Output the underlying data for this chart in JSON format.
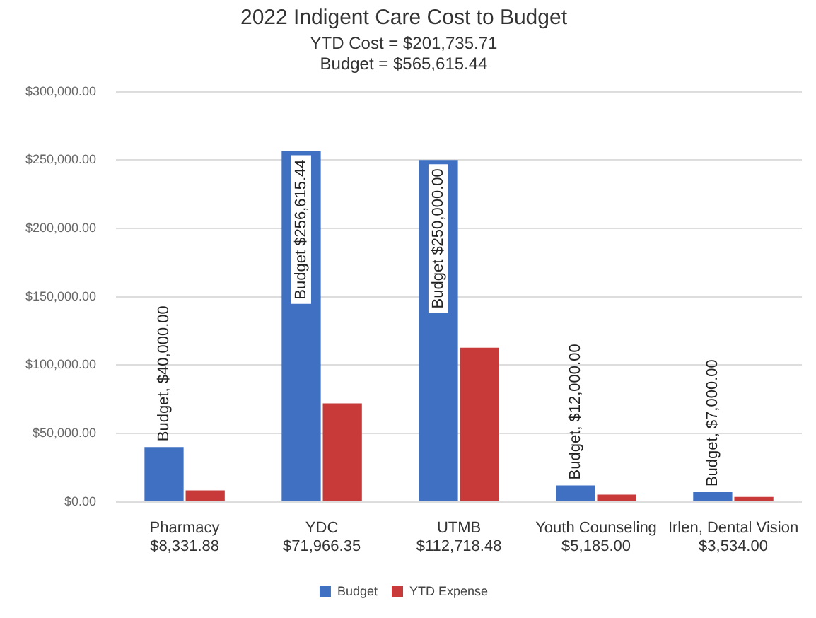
{
  "chart_data": {
    "type": "bar",
    "title": "2022 Indigent Care Cost to Budget",
    "subtitle": "YTD Cost = $201,735.71\nBudget = $565,615.44",
    "categories": [
      "Pharmacy",
      "YDC",
      "UTMB",
      "Youth Counseling",
      "Irlen, Dental Vision"
    ],
    "series": [
      {
        "name": "Budget",
        "color": "#3f70c2",
        "values": [
          40000,
          256615.44,
          250000,
          12000,
          7000
        ],
        "value_labels": [
          "Budget, $40,000.00",
          "Budget $256,615.44",
          "Budget $250,000.00",
          "Budget, $12,000.00",
          "Budget, $7,000.00"
        ]
      },
      {
        "name": "YTD Expense",
        "color": "#c83a3a",
        "values": [
          8331.88,
          71966.35,
          112718.48,
          5185,
          3534
        ],
        "value_labels": [
          "$8,331.88",
          "$71,966.35",
          "$112,718.48",
          "$5,185.00",
          "$3,534.00"
        ]
      }
    ],
    "ylim": [
      0,
      300000
    ],
    "yticks": [
      {
        "value": 0,
        "label": "$0.00"
      },
      {
        "value": 50000,
        "label": "$50,000.00"
      },
      {
        "value": 100000,
        "label": "$100,000.00"
      },
      {
        "value": 150000,
        "label": "$150,000.00"
      },
      {
        "value": 200000,
        "label": "$200,000.00"
      },
      {
        "value": 250000,
        "label": "$250,000.00"
      },
      {
        "value": 300000,
        "label": "$300,000.00"
      }
    ],
    "grid": "y",
    "legend": "bottom"
  }
}
